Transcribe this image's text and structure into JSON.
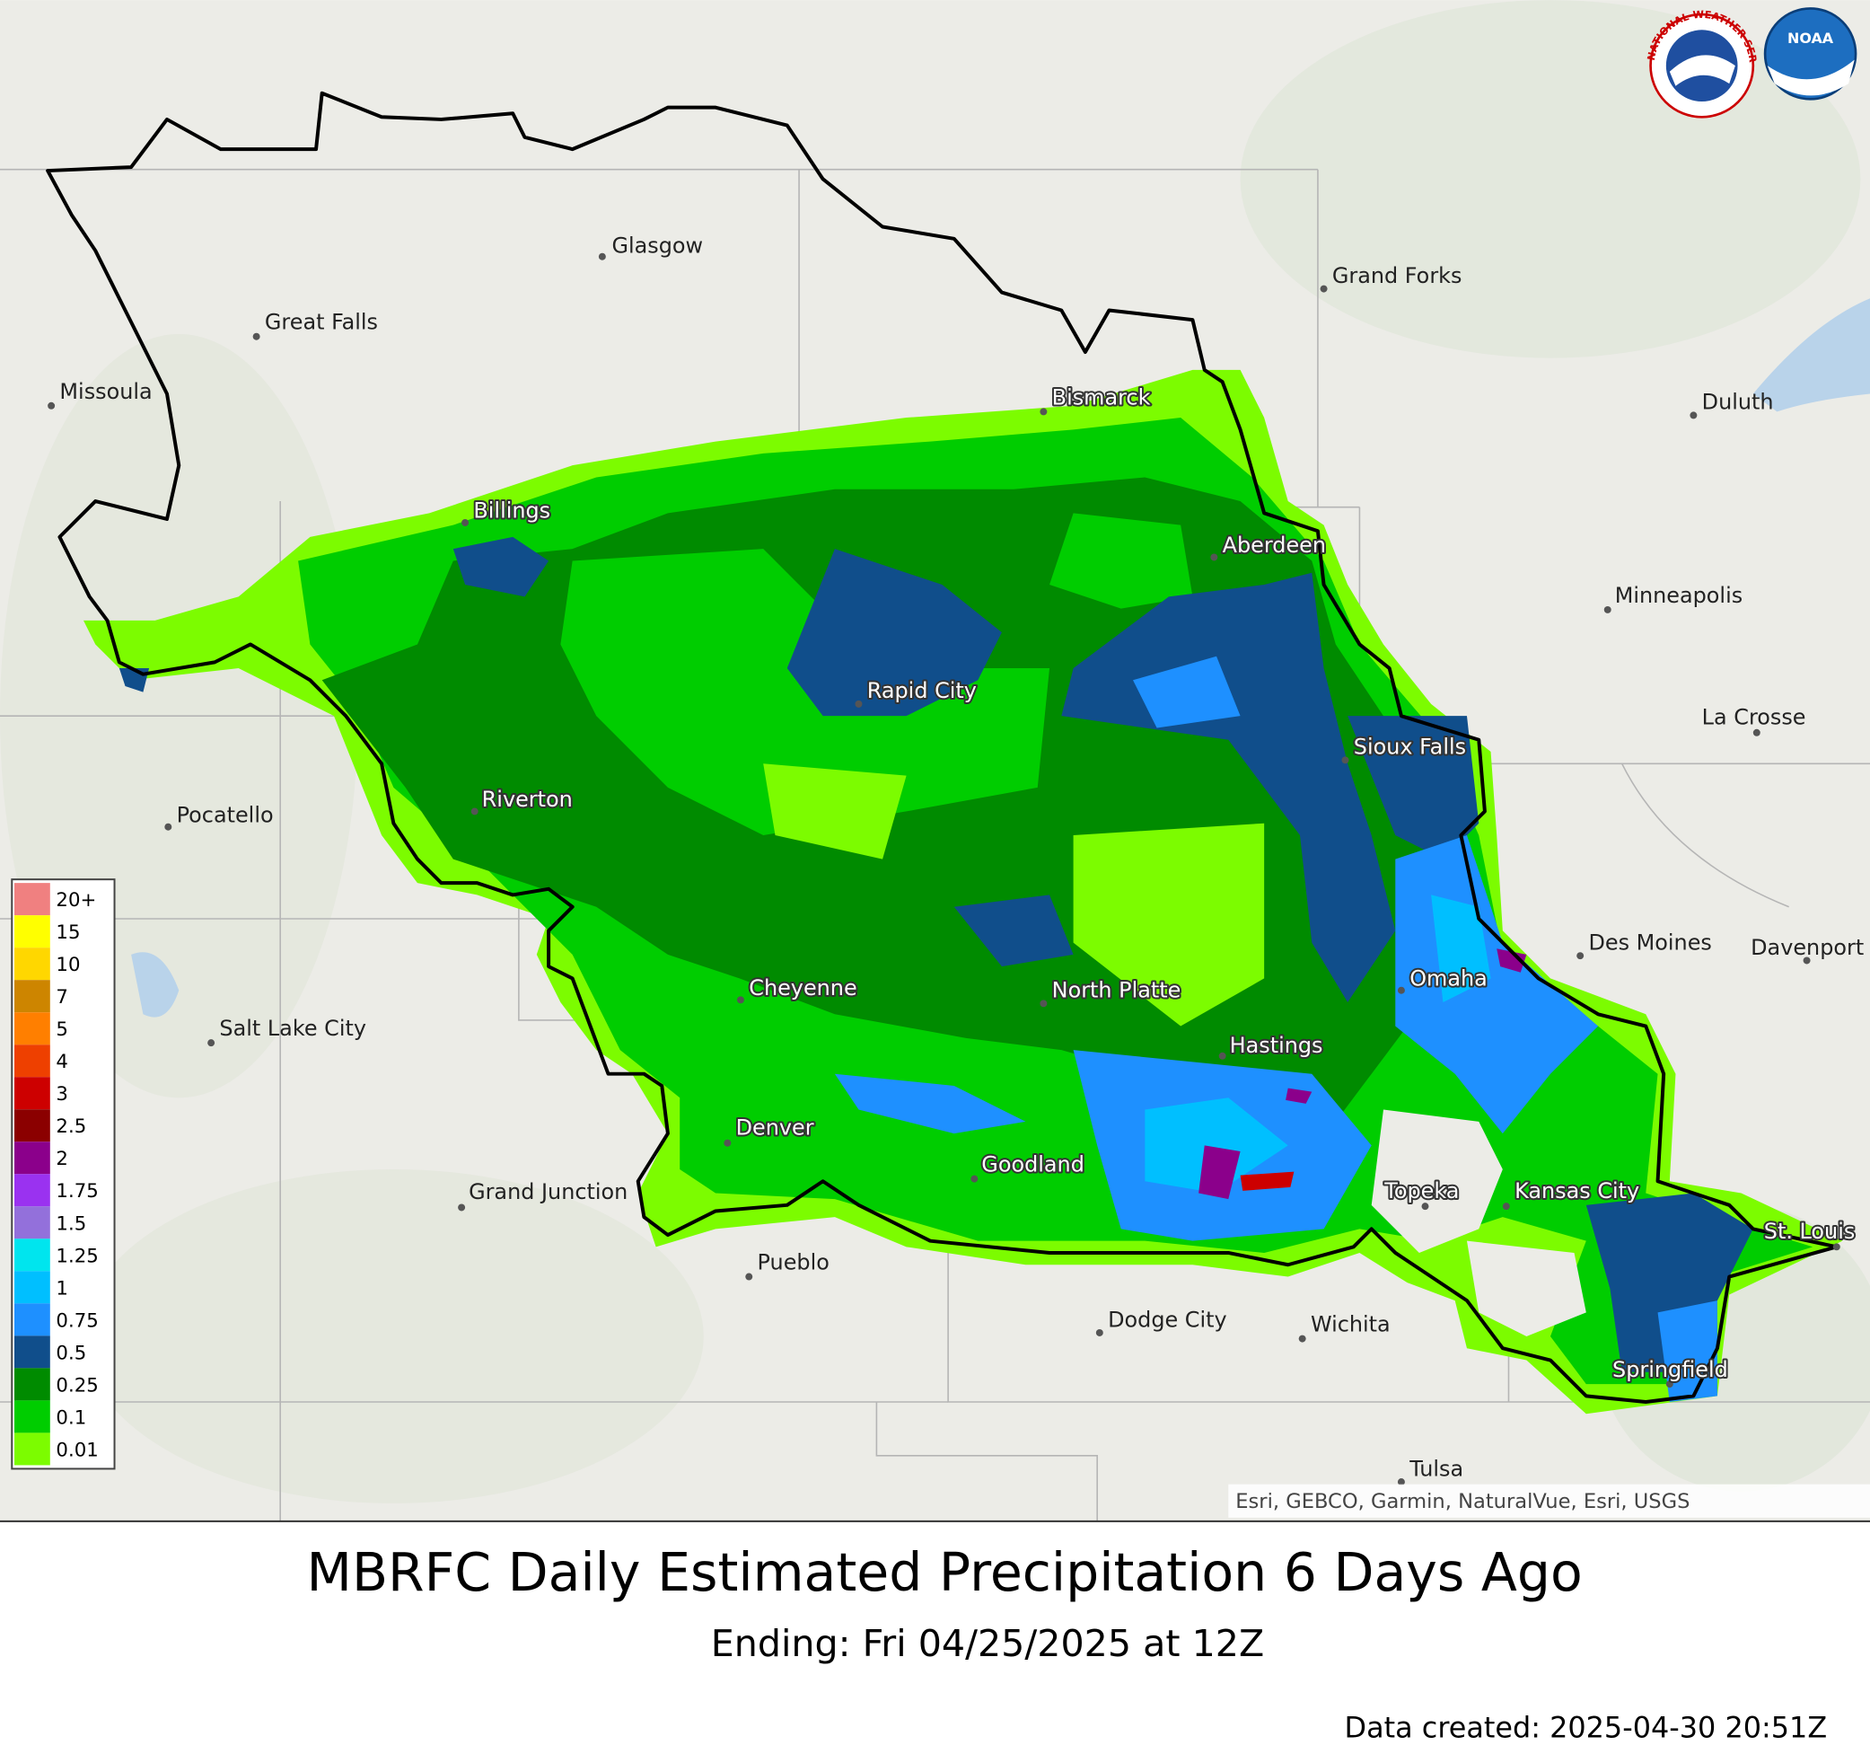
{
  "header": {
    "title": "MBRFC Daily Estimated Precipitation 6 Days Ago",
    "subtitle": "Ending: Fri 04/25/2025 at 12Z",
    "created": "Data created: 2025-04-30 20:51Z"
  },
  "logos": {
    "nws": "NATIONAL WEATHER SERVICE",
    "noaa": "NOAA"
  },
  "attribution": "Esri, GEBCO, Garmin, NaturalVue, Esri, USGS",
  "legend": {
    "items": [
      {
        "label": "20+",
        "color": "#f08080"
      },
      {
        "label": "15",
        "color": "#ffff00"
      },
      {
        "label": "10",
        "color": "#ffd700"
      },
      {
        "label": "7",
        "color": "#cd8500"
      },
      {
        "label": "5",
        "color": "#ff7f00"
      },
      {
        "label": "4",
        "color": "#ee4000"
      },
      {
        "label": "3",
        "color": "#cd0000"
      },
      {
        "label": "2.5",
        "color": "#8b0000"
      },
      {
        "label": "2",
        "color": "#8b008b"
      },
      {
        "label": "1.75",
        "color": "#9a32f0"
      },
      {
        "label": "1.5",
        "color": "#9370db"
      },
      {
        "label": "1.25",
        "color": "#00e5ee"
      },
      {
        "label": "1",
        "color": "#00bfff"
      },
      {
        "label": "0.75",
        "color": "#1e90ff"
      },
      {
        "label": "0.5",
        "color": "#104e8b"
      },
      {
        "label": "0.25",
        "color": "#008b00"
      },
      {
        "label": "0.1",
        "color": "#00cd00"
      },
      {
        "label": "0.01",
        "color": "#7cfc00"
      }
    ]
  },
  "cities": [
    {
      "name": "Glasgow"
    },
    {
      "name": "Great Falls"
    },
    {
      "name": "Missoula"
    },
    {
      "name": "Grand Forks"
    },
    {
      "name": "Bismarck"
    },
    {
      "name": "Duluth"
    },
    {
      "name": "Billings"
    },
    {
      "name": "Aberdeen"
    },
    {
      "name": "Minneapolis"
    },
    {
      "name": "Rapid City"
    },
    {
      "name": "La Crosse"
    },
    {
      "name": "Sioux Falls"
    },
    {
      "name": "Riverton"
    },
    {
      "name": "Pocatello"
    },
    {
      "name": "Des Moines"
    },
    {
      "name": "Davenport"
    },
    {
      "name": "Omaha"
    },
    {
      "name": "Cheyenne"
    },
    {
      "name": "North Platte"
    },
    {
      "name": "Salt Lake City"
    },
    {
      "name": "Hastings"
    },
    {
      "name": "Denver"
    },
    {
      "name": "Goodland"
    },
    {
      "name": "Topeka"
    },
    {
      "name": "Kansas City"
    },
    {
      "name": "Grand Junction"
    },
    {
      "name": "St. Louis"
    },
    {
      "name": "Pueblo"
    },
    {
      "name": "Dodge City"
    },
    {
      "name": "Wichita"
    },
    {
      "name": "Springfield"
    },
    {
      "name": "Tulsa"
    }
  ]
}
